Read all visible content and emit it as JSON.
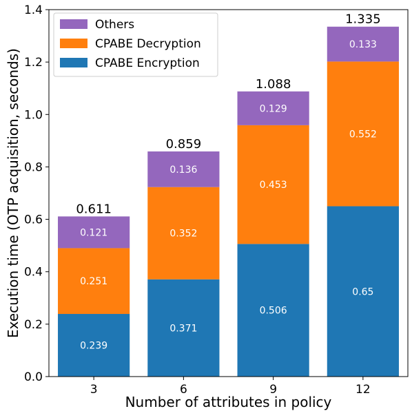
{
  "chart_data": {
    "type": "bar",
    "stacked": true,
    "categories": [
      "3",
      "6",
      "9",
      "12"
    ],
    "series": [
      {
        "name": "CPABE Encryption",
        "color": "#1f77b4",
        "values": [
          0.239,
          0.371,
          0.506,
          0.65
        ]
      },
      {
        "name": "CPABE Decryption",
        "color": "#ff7f0e",
        "values": [
          0.251,
          0.352,
          0.453,
          0.552
        ]
      },
      {
        "name": "Others",
        "color": "#9467bd",
        "values": [
          0.121,
          0.136,
          0.129,
          0.133
        ]
      }
    ],
    "segment_labels": [
      [
        "0.239",
        "0.371",
        "0.506",
        "0.65"
      ],
      [
        "0.251",
        "0.352",
        "0.453",
        "0.552"
      ],
      [
        "0.121",
        "0.136",
        "0.129",
        "0.133"
      ]
    ],
    "totals": [
      "0.611",
      "0.859",
      "1.088",
      "1.335"
    ],
    "xlabel": "Number of attributes in policy",
    "ylabel": "Execution time (OTP acquisition, seconds)",
    "ylim": [
      0,
      1.4
    ],
    "yticks": [
      "0.0",
      "0.2",
      "0.4",
      "0.6",
      "0.8",
      "1.0",
      "1.2",
      "1.4"
    ],
    "grid": false,
    "legend_position": "top-left",
    "legend_order": [
      "Others",
      "CPABE Decryption",
      "CPABE Encryption"
    ]
  }
}
